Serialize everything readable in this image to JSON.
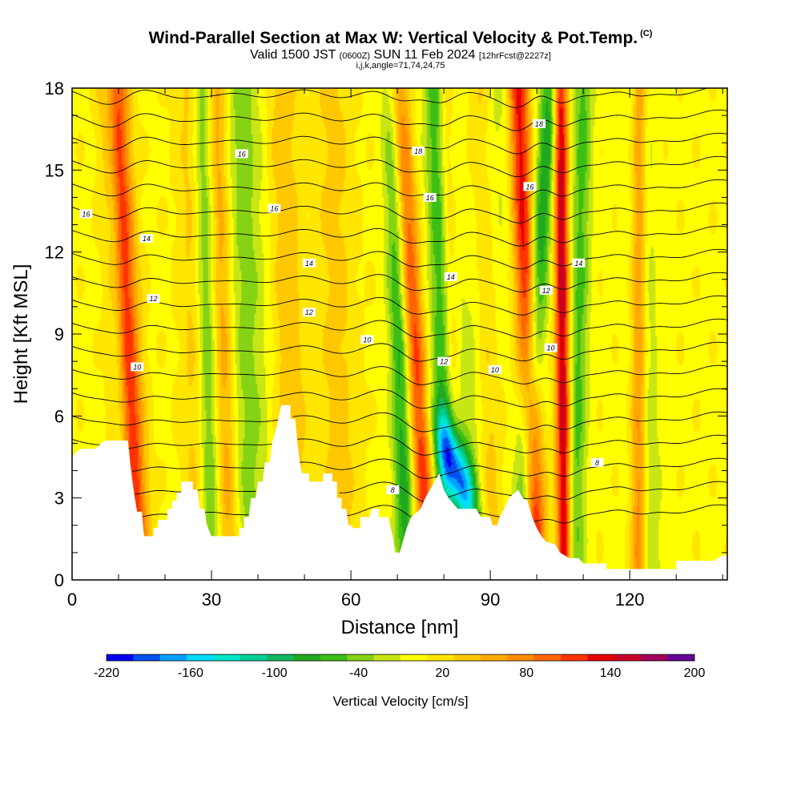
{
  "header": {
    "title": "Wind-Parallel Section at Max W: Vertical Velocity & Pot.Temp.",
    "copyright": "(C)",
    "valid_prefix": "Valid 1500 JST",
    "valid_utc": "(0600Z)",
    "valid_date": "SUN 11 Feb 2024",
    "forecast": "[12hrFcst@2227z]",
    "ijk": "i,j,k,angle=71,74,24,75"
  },
  "colorbar": {
    "title": "Vertical Velocity [cm/s]",
    "tick_labels": [
      "-220",
      "-160",
      "-100",
      "-40",
      "20",
      "80",
      "140",
      "200"
    ],
    "colors": [
      "#0000f0",
      "#0050f0",
      "#00a0ff",
      "#00dcff",
      "#00e6c8",
      "#00d096",
      "#10b860",
      "#20a820",
      "#3cbf14",
      "#86d214",
      "#c8e614",
      "#ffff00",
      "#ffe600",
      "#ffc800",
      "#ffaa00",
      "#ff8c00",
      "#ff6400",
      "#ff3200",
      "#e60000",
      "#c80028",
      "#a0005a",
      "#640096"
    ]
  },
  "chart_data": {
    "type": "heatmap",
    "xlabel": "Distance [nm]",
    "ylabel": "Height [Kft MSL]",
    "xlim": [
      0,
      141
    ],
    "ylim": [
      0,
      18
    ],
    "x_ticks": [
      0,
      30,
      60,
      90,
      120
    ],
    "y_ticks": [
      0,
      3,
      6,
      9,
      12,
      15,
      18
    ],
    "value_field": "Vertical Velocity",
    "value_units": "cm/s",
    "value_range": [
      -220,
      200
    ],
    "contour_field": "Pot.Temp.",
    "contour_labels": [
      {
        "text": "16",
        "x": 3,
        "y": 13.4
      },
      {
        "text": "14",
        "x": 16,
        "y": 12.5
      },
      {
        "text": "12",
        "x": 17.5,
        "y": 10.3
      },
      {
        "text": "10",
        "x": 14,
        "y": 7.8
      },
      {
        "text": "16",
        "x": 36.5,
        "y": 15.6
      },
      {
        "text": "16",
        "x": 43.5,
        "y": 13.6
      },
      {
        "text": "14",
        "x": 51,
        "y": 11.6
      },
      {
        "text": "12",
        "x": 51,
        "y": 9.8
      },
      {
        "text": "10",
        "x": 63.5,
        "y": 8.8
      },
      {
        "text": "8",
        "x": 69,
        "y": 3.3
      },
      {
        "text": "18",
        "x": 74.5,
        "y": 15.7
      },
      {
        "text": "16",
        "x": 77,
        "y": 14.0
      },
      {
        "text": "14",
        "x": 81.5,
        "y": 11.1
      },
      {
        "text": "12",
        "x": 80,
        "y": 8.0
      },
      {
        "text": "10",
        "x": 91,
        "y": 7.7
      },
      {
        "text": "18",
        "x": 100.5,
        "y": 16.7
      },
      {
        "text": "16",
        "x": 98.5,
        "y": 14.4
      },
      {
        "text": "12",
        "x": 102,
        "y": 10.6
      },
      {
        "text": "10",
        "x": 103,
        "y": 8.5
      },
      {
        "text": "14",
        "x": 109,
        "y": 11.6
      },
      {
        "text": "8",
        "x": 113,
        "y": 4.3
      }
    ],
    "terrain_profile": [
      [
        0,
        4.5
      ],
      [
        1,
        4.7
      ],
      [
        2,
        4.8
      ],
      [
        5,
        4.8
      ],
      [
        7,
        5.1
      ],
      [
        12,
        5.1
      ],
      [
        12.5,
        4.3
      ],
      [
        13,
        3.6
      ],
      [
        13.5,
        3.0
      ],
      [
        14,
        2.5
      ],
      [
        15,
        2.5
      ],
      [
        15.5,
        1.6
      ],
      [
        17.5,
        1.6
      ],
      [
        17.5,
        1.9
      ],
      [
        18.5,
        1.9
      ],
      [
        18.5,
        2.2
      ],
      [
        20.5,
        2.2
      ],
      [
        20.5,
        2.6
      ],
      [
        21.5,
        2.6
      ],
      [
        21.5,
        2.9
      ],
      [
        22.5,
        2.9
      ],
      [
        22.5,
        3.2
      ],
      [
        23.5,
        3.2
      ],
      [
        23.5,
        3.6
      ],
      [
        26,
        3.6
      ],
      [
        26,
        3.3
      ],
      [
        27,
        3.3
      ],
      [
        27.5,
        2.6
      ],
      [
        28.5,
        2.6
      ],
      [
        29,
        2.0
      ],
      [
        30,
        1.6
      ],
      [
        36,
        1.6
      ],
      [
        36,
        1.9
      ],
      [
        37,
        1.9
      ],
      [
        37,
        2.3
      ],
      [
        38,
        2.3
      ],
      [
        38.5,
        3.0
      ],
      [
        39.5,
        3.0
      ],
      [
        40,
        3.6
      ],
      [
        41,
        3.6
      ],
      [
        41.5,
        4.3
      ],
      [
        42.5,
        4.3
      ],
      [
        43,
        5.0
      ],
      [
        44,
        5.6
      ],
      [
        45,
        6.4
      ],
      [
        47,
        6.4
      ],
      [
        47,
        5.9
      ],
      [
        48,
        5.9
      ],
      [
        48.5,
        5.0
      ],
      [
        49,
        4.3
      ],
      [
        49.5,
        3.9
      ],
      [
        50,
        3.9
      ],
      [
        51,
        3.9
      ],
      [
        51,
        3.6
      ],
      [
        54,
        3.6
      ],
      [
        54,
        3.9
      ],
      [
        56,
        3.9
      ],
      [
        56,
        3.6
      ],
      [
        57,
        3.6
      ],
      [
        57,
        3.0
      ],
      [
        58,
        3.0
      ],
      [
        58,
        2.6
      ],
      [
        59,
        2.6
      ],
      [
        59.5,
        2.0
      ],
      [
        60,
        2.0
      ],
      [
        60.5,
        1.9
      ],
      [
        62,
        1.9
      ],
      [
        62,
        2.3
      ],
      [
        64,
        2.3
      ],
      [
        64.5,
        2.6
      ],
      [
        66,
        2.6
      ],
      [
        66,
        2.3
      ],
      [
        68,
        2.3
      ],
      [
        69,
        1.6
      ],
      [
        69.5,
        1.0
      ],
      [
        70.5,
        1.0
      ],
      [
        71,
        1.3
      ],
      [
        72,
        1.9
      ],
      [
        73,
        2.3
      ],
      [
        75,
        2.6
      ],
      [
        76,
        3.0
      ],
      [
        77,
        3.3
      ],
      [
        78,
        3.6
      ],
      [
        79,
        3.9
      ],
      [
        80,
        3.3
      ],
      [
        81,
        3.0
      ],
      [
        83,
        2.6
      ],
      [
        85,
        2.6
      ],
      [
        87,
        2.6
      ],
      [
        88,
        2.3
      ],
      [
        90,
        2.3
      ],
      [
        90.5,
        2.0
      ],
      [
        91.5,
        2.0
      ],
      [
        92,
        2.3
      ],
      [
        93,
        2.6
      ],
      [
        94,
        3.0
      ],
      [
        96,
        3.3
      ],
      [
        97,
        3.0
      ],
      [
        98,
        2.9
      ],
      [
        99,
        2.3
      ],
      [
        100,
        1.9
      ],
      [
        101,
        1.6
      ],
      [
        102,
        1.4
      ],
      [
        104,
        1.3
      ],
      [
        105,
        1.0
      ],
      [
        107,
        0.8
      ],
      [
        109,
        0.8
      ],
      [
        110,
        0.6
      ],
      [
        115,
        0.6
      ],
      [
        115,
        0.4
      ],
      [
        130,
        0.4
      ],
      [
        130,
        0.7
      ],
      [
        138,
        0.7
      ],
      [
        140,
        0.9
      ],
      [
        141,
        0.9
      ]
    ],
    "updraft_columns": [
      {
        "x_base": 14,
        "x_top": 9,
        "w": 2.0,
        "amp": 0.85
      },
      {
        "x_base": 34,
        "x_top": 31,
        "w": 1.8,
        "amp": 0.45
      },
      {
        "x_base": 48,
        "x_top": 45,
        "w": 2.5,
        "amp": 0.25
      },
      {
        "x_base": 77,
        "x_top": 70,
        "w": 1.6,
        "amp": 0.75
      },
      {
        "x_base": 83,
        "x_top": 80,
        "w": 1.4,
        "amp": 0.65
      },
      {
        "x_base": 100,
        "x_top": 96,
        "w": 1.6,
        "amp": 0.85
      },
      {
        "x_base": 106,
        "x_top": 105,
        "w": 1.1,
        "amp": 1.0
      },
      {
        "x_base": 122,
        "x_top": 122,
        "w": 1.2,
        "amp": 0.6
      },
      {
        "x_base": 58,
        "x_top": 56,
        "w": 3.0,
        "amp": 0.2
      },
      {
        "x_base": 28,
        "x_top": 26,
        "w": 2.5,
        "amp": 0.25
      },
      {
        "x_base": 90,
        "x_top": 88,
        "w": 2.0,
        "amp": 0.35
      }
    ],
    "downdraft_columns": [
      {
        "x_base": 12,
        "x_top": 8,
        "w": 1.2,
        "amp": 0.5
      },
      {
        "x_base": 30,
        "x_top": 28,
        "w": 1.6,
        "amp": 0.7
      },
      {
        "x_base": 38,
        "x_top": 36,
        "w": 3.5,
        "amp": 0.4
      },
      {
        "x_base": 72,
        "x_top": 69,
        "w": 1.6,
        "amp": 0.75
      },
      {
        "x_base": 82,
        "x_top": 79,
        "w": 2.0,
        "amp": 1.0
      },
      {
        "x_base": 96,
        "x_top": 103,
        "w": 1.6,
        "amp": 0.8
      },
      {
        "x_base": 108,
        "x_top": 110,
        "w": 1.5,
        "amp": 0.55
      },
      {
        "x_base": 124,
        "x_top": 122,
        "w": 2.0,
        "amp": 0.35
      },
      {
        "x_base": 86,
        "x_top": 90,
        "w": 3.0,
        "amp": 0.35
      }
    ]
  }
}
